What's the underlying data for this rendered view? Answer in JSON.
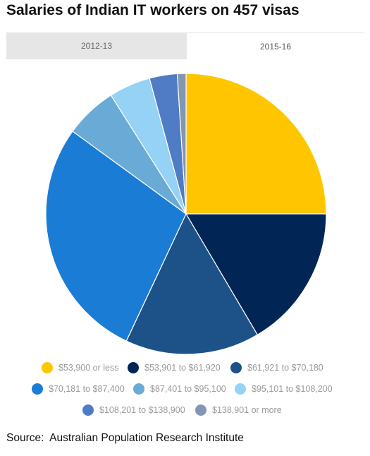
{
  "title": "Salaries of Indian IT workers on 457 visas",
  "tabs": [
    {
      "label": "2012-13",
      "active": false
    },
    {
      "label": "2015-16",
      "active": true
    }
  ],
  "source": "Source:  Australian Population Research Institute",
  "chart_data": {
    "type": "pie",
    "title": "Salaries of Indian IT workers on 457 visas",
    "period": "2015-16",
    "start_angle": "12 o'clock, clockwise",
    "legend_position": "bottom",
    "slices": [
      {
        "label": "$53,900 or less",
        "value": 25.0,
        "color": "#ffc600"
      },
      {
        "label": "$53,901 to $61,920",
        "value": 16.5,
        "color": "#012655"
      },
      {
        "label": "$61,921 to $70,180",
        "value": 15.5,
        "color": "#1c5288"
      },
      {
        "label": "$70,181 to $87,400",
        "value": 28.0,
        "color": "#1b7cd6"
      },
      {
        "label": "$87,401 to $95,100",
        "value": 6.0,
        "color": "#6aaad6"
      },
      {
        "label": "$95,101 to $108,200",
        "value": 4.8,
        "color": "#95d2f5"
      },
      {
        "label": "$108,201 to $138,900",
        "value": 3.2,
        "color": "#4f7cc4"
      },
      {
        "label": "$138,901 or more",
        "value": 1.0,
        "color": "#8396b3"
      }
    ]
  }
}
